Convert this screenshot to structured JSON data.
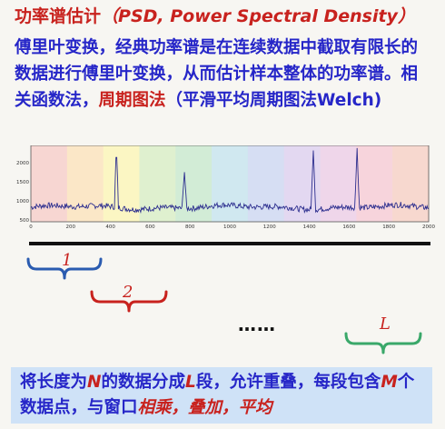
{
  "title": {
    "cn": "功率谱估计",
    "en": "（PSD, Power Spectral Density）"
  },
  "paragraph": {
    "part1": "傅里叶变换，经典功率谱是在连续数据中截取有限长的数据进行傅里叶变换，从而估计样本整体的功率谱。相关函数法，",
    "highlight": "周期图法",
    "part2": "（平滑平均周期图法Welch)"
  },
  "chart_data": {
    "type": "line",
    "x_ticks": [
      "0",
      "200",
      "400",
      "600",
      "800",
      "1000",
      "1200",
      "1400",
      "1600",
      "1800",
      "2000"
    ],
    "y_ticks": [
      "500",
      "1000",
      "1500",
      "2000"
    ],
    "xlim": [
      0,
      2000
    ],
    "ylim": [
      450,
      2450
    ],
    "segment_colors": [
      "#f7d6d2",
      "#fbe7c7",
      "#fbf6c3",
      "#dff0cf",
      "#d2ecd6",
      "#d0e8f0",
      "#d6def3",
      "#e3d8f1",
      "#efd6ea",
      "#f7d4dc",
      "#f7d8cf"
    ],
    "line_color": "#2d2f8f",
    "peaks": [
      {
        "x": 430,
        "y": 2420
      },
      {
        "x": 772,
        "y": 1750
      },
      {
        "x": 1420,
        "y": 2320
      },
      {
        "x": 1640,
        "y": 2380
      }
    ]
  },
  "segments": [
    {
      "label": "1",
      "color": "#c8221e",
      "brace_color": "#2a5bb0"
    },
    {
      "label": "2",
      "color": "#c8221e",
      "brace_color": "#c8221e"
    },
    {
      "label": "L",
      "color": "#c8221e",
      "brace_color": "#3aa86a"
    }
  ],
  "ellipsis": "……",
  "bottom": {
    "t1": "将长度为",
    "n": "N",
    "t2": "的数据分成",
    "l": "L",
    "t3": "段，允许重叠，每段包含",
    "m": "M",
    "t4": "个数据点，与窗口",
    "ops": "相乘，叠加，平均"
  }
}
